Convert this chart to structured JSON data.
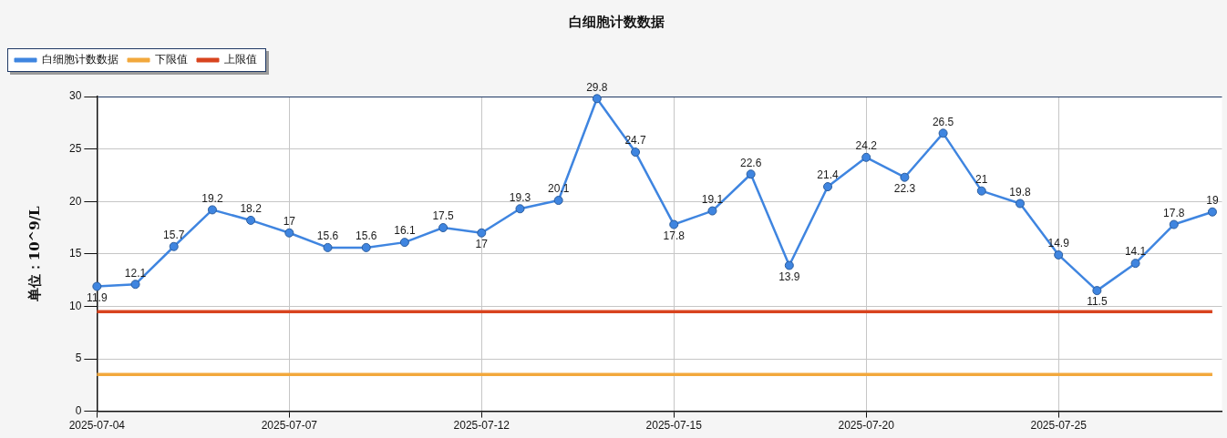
{
  "chart_data": {
    "type": "line",
    "title": "白细胞计数数据",
    "ylabel": "单位：10^9/L",
    "categories": [
      "2025-07-04",
      null,
      null,
      null,
      null,
      "2025-07-07",
      null,
      null,
      null,
      null,
      "2025-07-12",
      null,
      null,
      null,
      null,
      "2025-07-15",
      null,
      null,
      null,
      null,
      "2025-07-20",
      null,
      null,
      null,
      null,
      "2025-07-25",
      null,
      null,
      null,
      null
    ],
    "series": [
      {
        "name": "白细胞计数数据",
        "color": "#3f85e0",
        "values": [
          11.9,
          12.1,
          15.7,
          19.2,
          18.2,
          17,
          15.6,
          15.6,
          16.1,
          17.5,
          17,
          19.3,
          20.1,
          29.8,
          24.7,
          17.8,
          19.1,
          22.6,
          13.9,
          21.4,
          24.2,
          22.3,
          26.5,
          21,
          19.8,
          14.9,
          11.5,
          14.1,
          17.8,
          19
        ],
        "value_labels": [
          "11.9",
          "12.1",
          "15.7",
          "19.2",
          "18.2",
          "17",
          "15.6",
          "15.6",
          "16.1",
          "17.5",
          "17",
          "19.3",
          "20.1",
          "29.8",
          "24.7",
          "17.8",
          "19.1",
          "22.6",
          "13.9",
          "21.4",
          "24.2",
          "22.3",
          "26.5",
          "21",
          "19.8",
          "14.9",
          "11.5",
          "14.1",
          "17.8",
          "19"
        ]
      },
      {
        "name": "下限值",
        "color": "#f2a83c",
        "marker": "none",
        "values": [
          3.5,
          3.5,
          3.5,
          3.5,
          3.5,
          3.5,
          3.5,
          3.5,
          3.5,
          3.5,
          3.5,
          3.5,
          3.5,
          3.5,
          3.5,
          3.5,
          3.5,
          3.5,
          3.5,
          3.5,
          3.5,
          3.5,
          3.5,
          3.5,
          3.5,
          3.5,
          3.5,
          3.5,
          3.5,
          3.5
        ]
      },
      {
        "name": "上限值",
        "color": "#d8441f",
        "marker": "none",
        "values": [
          9.5,
          9.5,
          9.5,
          9.5,
          9.5,
          9.5,
          9.5,
          9.5,
          9.5,
          9.5,
          9.5,
          9.5,
          9.5,
          9.5,
          9.5,
          9.5,
          9.5,
          9.5,
          9.5,
          9.5,
          9.5,
          9.5,
          9.5,
          9.5,
          9.5,
          9.5,
          9.5,
          9.5,
          9.5,
          9.5
        ]
      }
    ],
    "ylim": [
      0,
      30
    ],
    "yticks": [
      0,
      5,
      10,
      15,
      20,
      25,
      30
    ],
    "grid": true,
    "legend": "top left",
    "marker": "circle",
    "line_style": "solid"
  }
}
